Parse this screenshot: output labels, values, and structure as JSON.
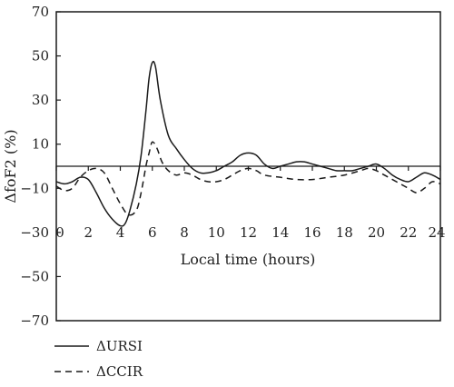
{
  "chart_data": {
    "type": "line",
    "title": "",
    "xlabel": "Local time (hours)",
    "ylabel": "ΔfoF2 (%)",
    "xlim": [
      0,
      24
    ],
    "ylim": [
      -70,
      70
    ],
    "xticks": [
      0,
      2,
      4,
      6,
      8,
      10,
      12,
      14,
      16,
      18,
      20,
      22,
      24
    ],
    "yticks": [
      70,
      50,
      30,
      10,
      -10,
      -30,
      -50,
      -70
    ],
    "ytick_labels": [
      "70",
      "50",
      "30",
      "10",
      "−10",
      "−30",
      "−50",
      "−70"
    ],
    "xaxis_at_y": 0,
    "grid": false,
    "legend_position": "bottom-left",
    "series": [
      {
        "name": "ΔURSI",
        "style": "solid",
        "color": "#1a1a1a",
        "x": [
          0,
          0.5,
          1,
          1.5,
          2,
          2.5,
          3,
          3.5,
          4,
          4.3,
          4.6,
          5,
          5.3,
          5.6,
          5.8,
          6,
          6.2,
          6.5,
          7,
          7.5,
          8,
          8.5,
          9,
          9.5,
          10,
          10.5,
          11,
          11.5,
          12,
          12.5,
          13,
          13.5,
          14,
          14.5,
          15,
          15.5,
          16,
          16.5,
          17,
          17.5,
          18,
          18.5,
          19,
          19.5,
          20,
          20.5,
          21,
          21.5,
          22,
          22.5,
          23,
          23.5,
          24
        ],
        "y": [
          -7,
          -8,
          -7,
          -5,
          -6,
          -12,
          -19,
          -24,
          -27,
          -26,
          -20,
          -8,
          5,
          25,
          40,
          47,
          45,
          30,
          14,
          8,
          3,
          -1,
          -3,
          -3,
          -2,
          0,
          2,
          5,
          6,
          5,
          1,
          -1,
          0,
          1,
          2,
          2,
          1,
          0,
          -1,
          -2,
          -2,
          -2,
          -1,
          0,
          1,
          -1,
          -4,
          -6,
          -7,
          -5,
          -3,
          -4,
          -6
        ]
      },
      {
        "name": "ΔCCIR",
        "style": "dashed",
        "color": "#1a1a1a",
        "x": [
          0,
          0.5,
          1,
          1.5,
          2,
          2.5,
          3,
          3.5,
          4,
          4.5,
          5,
          5.3,
          5.6,
          5.8,
          6,
          6.3,
          6.6,
          7,
          7.5,
          8,
          8.5,
          9,
          9.5,
          10,
          10.5,
          11,
          11.5,
          12,
          12.5,
          13,
          14,
          15,
          16,
          17,
          18,
          19,
          19.5,
          20,
          20.5,
          21,
          21.5,
          22,
          22.5,
          23,
          23.5,
          24
        ],
        "y": [
          -9,
          -11,
          -10,
          -5,
          -2,
          -1,
          -3,
          -10,
          -17,
          -22,
          -20,
          -12,
          0,
          6,
          11,
          8,
          2,
          -2,
          -4,
          -3,
          -4,
          -6,
          -7,
          -7,
          -6,
          -4,
          -2,
          -1,
          -2,
          -4,
          -5,
          -6,
          -6,
          -5,
          -4,
          -2,
          -1,
          -2,
          -4,
          -6,
          -8,
          -10,
          -12,
          -10,
          -7,
          -8
        ]
      }
    ]
  }
}
